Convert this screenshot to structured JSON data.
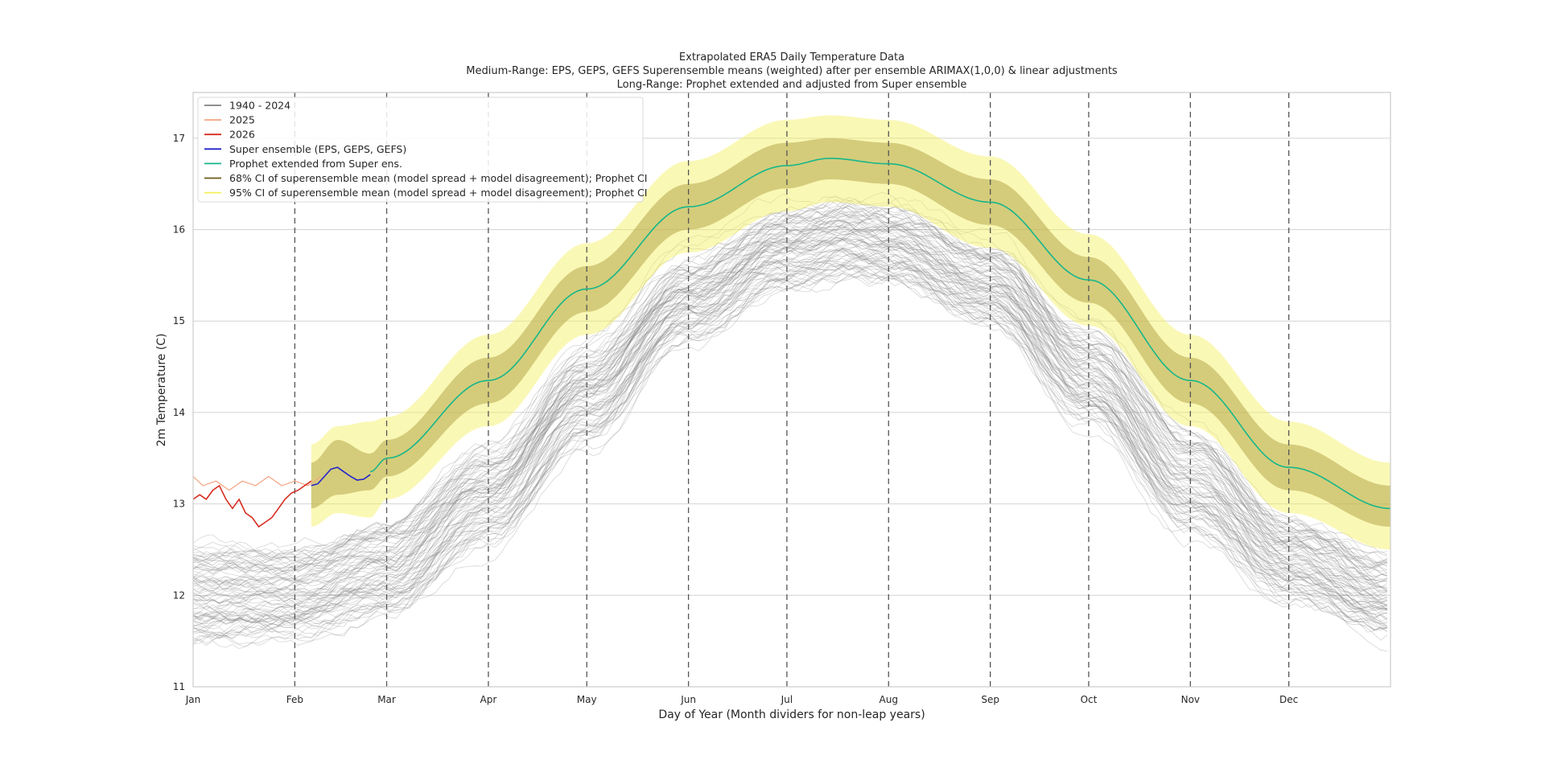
{
  "chart_data": {
    "type": "line",
    "title_lines": [
      "Extrapolated ERA5 Daily Temperature Data",
      "Medium-Range: EPS, GEPS, GEFS Superensemble means (weighted) after per ensemble ARIMAX(1,0,0) & linear adjustments",
      "Long-Range: Prophet extended and adjusted from Super ensemble"
    ],
    "xlabel": "Day of Year (Month dividers for non-leap years)",
    "ylabel": "2m Temperature (C)",
    "xlim": [
      1,
      366
    ],
    "ylim": [
      11,
      17.5
    ],
    "yticks": [
      11,
      12,
      13,
      14,
      15,
      16,
      17
    ],
    "month_ticks": [
      {
        "day": 1,
        "label": "Jan"
      },
      {
        "day": 32,
        "label": "Feb"
      },
      {
        "day": 60,
        "label": "Mar"
      },
      {
        "day": 91,
        "label": "Apr"
      },
      {
        "day": 121,
        "label": "May"
      },
      {
        "day": 152,
        "label": "Jun"
      },
      {
        "day": 182,
        "label": "Jul"
      },
      {
        "day": 213,
        "label": "Aug"
      },
      {
        "day": 244,
        "label": "Sep"
      },
      {
        "day": 274,
        "label": "Oct"
      },
      {
        "day": 305,
        "label": "Nov"
      },
      {
        "day": 335,
        "label": "Dec"
      }
    ],
    "legend_position": "upper-left",
    "legend": [
      {
        "label": "1940 - 2024",
        "color": "#808080"
      },
      {
        "label": "2025",
        "color": "#f4a582"
      },
      {
        "label": "2026",
        "color": "#d62d20"
      },
      {
        "label": "Super ensemble (EPS, GEPS, GEFS)",
        "color": "#2222cc"
      },
      {
        "label": "Prophet extended from Super ens.",
        "color": "#17b68a"
      },
      {
        "label": "68% CI of superensemble mean (model spread + model disagreement); Prophet CI",
        "color": "#6b5b1a"
      },
      {
        "label": "95% CI of superensemble mean (model spread + model disagreement); Prophet CI",
        "color": "#f5ef5a"
      }
    ],
    "historical_envelope": {
      "label": "1940 - 2024",
      "count": 85,
      "x": [
        1,
        32,
        60,
        91,
        121,
        152,
        182,
        200,
        213,
        244,
        274,
        305,
        335,
        366
      ],
      "low": [
        11.4,
        11.45,
        11.7,
        12.5,
        13.6,
        14.7,
        15.3,
        15.4,
        15.35,
        14.9,
        13.8,
        12.6,
        11.9,
        11.5
      ],
      "high": [
        12.6,
        12.6,
        12.9,
        13.7,
        14.8,
        15.8,
        16.3,
        16.4,
        16.35,
        15.9,
        15.0,
        13.9,
        12.9,
        12.5
      ]
    },
    "series": [
      {
        "name": "2025",
        "color": "#f4a582",
        "x": [
          1,
          4,
          8,
          12,
          16,
          20,
          24,
          28,
          32,
          36,
          40
        ],
        "y": [
          13.3,
          13.2,
          13.25,
          13.15,
          13.25,
          13.2,
          13.3,
          13.2,
          13.25,
          13.2,
          13.3
        ]
      },
      {
        "name": "2026",
        "color": "#d62d20",
        "x": [
          1,
          3,
          5,
          7,
          9,
          11,
          13,
          15,
          17,
          19,
          21,
          23,
          25,
          27,
          29,
          31,
          33,
          35,
          37
        ],
        "y": [
          13.05,
          13.1,
          13.05,
          13.15,
          13.2,
          13.05,
          12.95,
          13.05,
          12.9,
          12.85,
          12.75,
          12.8,
          12.85,
          12.95,
          13.05,
          13.12,
          13.15,
          13.2,
          13.25
        ]
      },
      {
        "name": "Super ensemble (EPS, GEPS, GEFS)",
        "color": "#2222cc",
        "x": [
          37,
          39,
          41,
          43,
          45,
          47,
          49,
          51,
          53,
          55
        ],
        "y": [
          13.2,
          13.22,
          13.3,
          13.38,
          13.4,
          13.35,
          13.3,
          13.26,
          13.27,
          13.32
        ]
      },
      {
        "name": "Prophet extended from Super ens.",
        "color": "#17b68a",
        "x": [
          55,
          60,
          91,
          121,
          152,
          182,
          195,
          213,
          244,
          274,
          305,
          335,
          366
        ],
        "y": [
          13.35,
          13.5,
          14.35,
          15.35,
          16.25,
          16.7,
          16.78,
          16.72,
          16.3,
          15.45,
          14.35,
          13.4,
          12.95
        ]
      }
    ],
    "ci68": {
      "x": [
        37,
        45,
        55,
        60,
        91,
        121,
        152,
        182,
        195,
        213,
        244,
        274,
        305,
        335,
        366
      ],
      "low": [
        12.95,
        13.1,
        13.15,
        13.3,
        14.1,
        15.1,
        16.0,
        16.45,
        16.55,
        16.5,
        16.05,
        15.2,
        14.1,
        13.15,
        12.75
      ],
      "high": [
        13.45,
        13.7,
        13.55,
        13.7,
        14.6,
        15.6,
        16.5,
        16.95,
        17.0,
        16.95,
        16.55,
        15.7,
        14.6,
        13.65,
        13.2
      ]
    },
    "ci95": {
      "x": [
        37,
        45,
        55,
        60,
        91,
        121,
        152,
        182,
        195,
        213,
        244,
        274,
        305,
        335,
        366
      ],
      "low": [
        12.75,
        12.9,
        12.85,
        13.05,
        13.85,
        14.85,
        15.75,
        16.2,
        16.3,
        16.25,
        15.8,
        14.95,
        13.85,
        12.9,
        12.5
      ],
      "high": [
        13.65,
        13.85,
        13.9,
        13.95,
        14.85,
        15.85,
        16.75,
        17.2,
        17.25,
        17.2,
        16.8,
        15.95,
        14.85,
        13.9,
        13.45
      ]
    }
  }
}
